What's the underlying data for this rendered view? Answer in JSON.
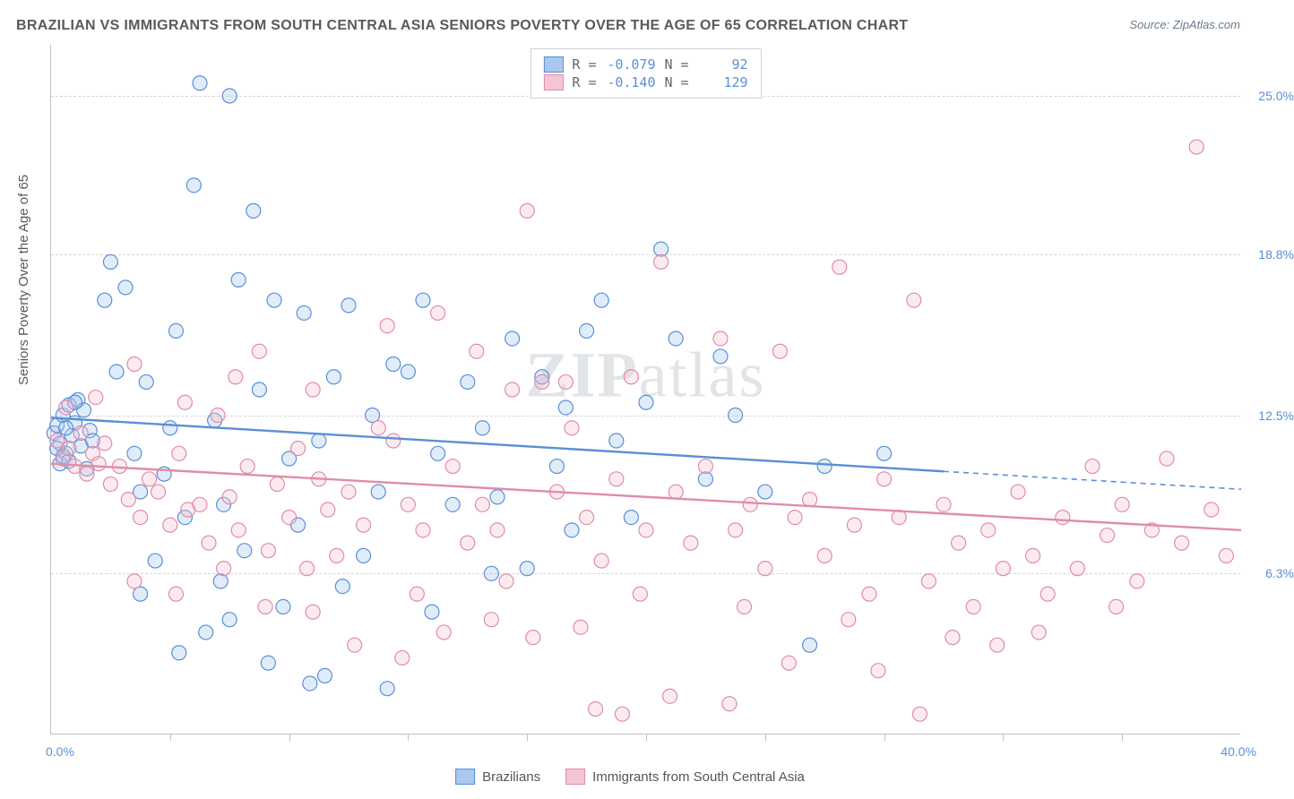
{
  "title": "BRAZILIAN VS IMMIGRANTS FROM SOUTH CENTRAL ASIA SENIORS POVERTY OVER THE AGE OF 65 CORRELATION CHART",
  "source_label": "Source: ",
  "source_name": "ZipAtlas.com",
  "ylabel": "Seniors Poverty Over the Age of 65",
  "watermark_a": "ZIP",
  "watermark_b": "atlas",
  "chart": {
    "type": "scatter",
    "background_color": "#ffffff",
    "grid_color": "#d5d5d5",
    "grid_dash": "dashed",
    "axis_color": "#c0c0c0",
    "xlim": [
      0.0,
      40.0
    ],
    "ylim": [
      0.0,
      27.0
    ],
    "x_ticks_minor_count": 9,
    "y_gridlines": [
      6.3,
      12.5,
      18.8,
      25.0
    ],
    "y_tick_labels": [
      "6.3%",
      "12.5%",
      "18.8%",
      "25.0%"
    ],
    "x_tick_labels": {
      "left": "0.0%",
      "right": "40.0%"
    },
    "tick_label_color": "#5b8fd6",
    "axis_label_color": "#5a5a5a",
    "axis_label_fontsize": 15,
    "marker_radius": 8,
    "marker_stroke_width": 1.2,
    "marker_fill_opacity": 0.35,
    "trend_line_width": 2.4
  },
  "series": [
    {
      "name": "Brazilians",
      "color_fill": "#a9c8ed",
      "color_stroke": "#5b8fd6",
      "r_value": "-0.079",
      "n_value": "92",
      "trend": {
        "x1": 0.0,
        "y1": 12.4,
        "x2": 30.0,
        "y2": 10.3,
        "extend_x2": 40.0,
        "extend_y2": 9.6,
        "dashed_after": 30.0
      },
      "points": [
        [
          0.1,
          11.8
        ],
        [
          0.2,
          12.1
        ],
        [
          0.3,
          11.4
        ],
        [
          0.4,
          12.5
        ],
        [
          0.5,
          11.0
        ],
        [
          0.6,
          12.9
        ],
        [
          0.3,
          10.6
        ],
        [
          0.7,
          11.7
        ],
        [
          0.8,
          12.2
        ],
        [
          0.4,
          10.9
        ],
        [
          0.9,
          13.1
        ],
        [
          1.0,
          11.3
        ],
        [
          1.1,
          12.7
        ],
        [
          1.2,
          10.4
        ],
        [
          1.3,
          11.9
        ],
        [
          0.5,
          12.0
        ],
        [
          0.2,
          11.2
        ],
        [
          0.6,
          10.7
        ],
        [
          0.8,
          13.0
        ],
        [
          1.4,
          11.5
        ],
        [
          1.8,
          17.0
        ],
        [
          2.0,
          18.5
        ],
        [
          2.2,
          14.2
        ],
        [
          2.5,
          17.5
        ],
        [
          2.8,
          11.0
        ],
        [
          3.0,
          9.5
        ],
        [
          3.2,
          13.8
        ],
        [
          3.5,
          6.8
        ],
        [
          3.8,
          10.2
        ],
        [
          4.0,
          12.0
        ],
        [
          4.2,
          15.8
        ],
        [
          4.5,
          8.5
        ],
        [
          4.8,
          21.5
        ],
        [
          5.0,
          25.5
        ],
        [
          5.2,
          4.0
        ],
        [
          5.5,
          12.3
        ],
        [
          5.8,
          9.0
        ],
        [
          6.0,
          25.0
        ],
        [
          6.3,
          17.8
        ],
        [
          6.5,
          7.2
        ],
        [
          6.8,
          20.5
        ],
        [
          7.0,
          13.5
        ],
        [
          7.5,
          17.0
        ],
        [
          7.8,
          5.0
        ],
        [
          8.0,
          10.8
        ],
        [
          8.3,
          8.2
        ],
        [
          8.5,
          16.5
        ],
        [
          9.0,
          11.5
        ],
        [
          9.5,
          14.0
        ],
        [
          9.8,
          5.8
        ],
        [
          10.0,
          16.8
        ],
        [
          10.5,
          7.0
        ],
        [
          10.8,
          12.5
        ],
        [
          11.0,
          9.5
        ],
        [
          11.5,
          14.5
        ],
        [
          12.0,
          14.2
        ],
        [
          12.5,
          17.0
        ],
        [
          13.0,
          11.0
        ],
        [
          13.5,
          9.0
        ],
        [
          14.0,
          13.8
        ],
        [
          14.5,
          12.0
        ],
        [
          15.0,
          9.3
        ],
        [
          15.5,
          15.5
        ],
        [
          16.0,
          6.5
        ],
        [
          16.5,
          14.0
        ],
        [
          17.0,
          10.5
        ],
        [
          17.5,
          8.0
        ],
        [
          18.0,
          15.8
        ],
        [
          18.5,
          17.0
        ],
        [
          19.0,
          11.5
        ],
        [
          20.0,
          13.0
        ],
        [
          20.5,
          19.0
        ],
        [
          21.0,
          15.5
        ],
        [
          22.0,
          10.0
        ],
        [
          23.0,
          12.5
        ],
        [
          24.0,
          9.5
        ],
        [
          8.7,
          2.0
        ],
        [
          9.2,
          2.3
        ],
        [
          11.3,
          1.8
        ],
        [
          6.0,
          4.5
        ],
        [
          25.5,
          3.5
        ],
        [
          12.8,
          4.8
        ],
        [
          7.3,
          2.8
        ],
        [
          28.0,
          11.0
        ],
        [
          14.8,
          6.3
        ],
        [
          4.3,
          3.2
        ],
        [
          3.0,
          5.5
        ],
        [
          5.7,
          6.0
        ],
        [
          26.0,
          10.5
        ],
        [
          22.5,
          14.8
        ],
        [
          19.5,
          8.5
        ],
        [
          17.3,
          12.8
        ]
      ]
    },
    {
      "name": "Immigrants from South Central Asia",
      "color_fill": "#f4c5d3",
      "color_stroke": "#e08ca8",
      "r_value": "-0.140",
      "n_value": "129",
      "trend": {
        "x1": 0.0,
        "y1": 10.6,
        "x2": 40.0,
        "y2": 8.0,
        "dashed_after": null
      },
      "points": [
        [
          0.2,
          11.5
        ],
        [
          0.4,
          10.8
        ],
        [
          0.6,
          11.2
        ],
        [
          0.8,
          10.5
        ],
        [
          1.0,
          11.8
        ],
        [
          1.2,
          10.2
        ],
        [
          1.4,
          11.0
        ],
        [
          1.6,
          10.6
        ],
        [
          1.8,
          11.4
        ],
        [
          2.0,
          9.8
        ],
        [
          2.3,
          10.5
        ],
        [
          2.6,
          9.2
        ],
        [
          3.0,
          8.5
        ],
        [
          3.3,
          10.0
        ],
        [
          3.6,
          9.5
        ],
        [
          4.0,
          8.2
        ],
        [
          4.3,
          11.0
        ],
        [
          4.6,
          8.8
        ],
        [
          5.0,
          9.0
        ],
        [
          5.3,
          7.5
        ],
        [
          5.6,
          12.5
        ],
        [
          6.0,
          9.3
        ],
        [
          6.3,
          8.0
        ],
        [
          6.6,
          10.5
        ],
        [
          7.0,
          15.0
        ],
        [
          7.3,
          7.2
        ],
        [
          7.6,
          9.8
        ],
        [
          8.0,
          8.5
        ],
        [
          8.3,
          11.2
        ],
        [
          8.6,
          6.5
        ],
        [
          9.0,
          10.0
        ],
        [
          9.3,
          8.8
        ],
        [
          9.6,
          7.0
        ],
        [
          10.0,
          9.5
        ],
        [
          10.5,
          8.2
        ],
        [
          11.0,
          12.0
        ],
        [
          11.5,
          11.5
        ],
        [
          12.0,
          9.0
        ],
        [
          12.5,
          8.0
        ],
        [
          13.0,
          16.5
        ],
        [
          13.5,
          10.5
        ],
        [
          14.0,
          7.5
        ],
        [
          14.5,
          9.0
        ],
        [
          15.0,
          8.0
        ],
        [
          15.5,
          13.5
        ],
        [
          16.0,
          20.5
        ],
        [
          16.5,
          13.8
        ],
        [
          17.0,
          9.5
        ],
        [
          17.5,
          12.0
        ],
        [
          18.0,
          8.5
        ],
        [
          18.5,
          6.8
        ],
        [
          19.0,
          10.0
        ],
        [
          19.5,
          14.0
        ],
        [
          20.0,
          8.0
        ],
        [
          20.5,
          18.5
        ],
        [
          21.0,
          9.5
        ],
        [
          21.5,
          7.5
        ],
        [
          22.0,
          10.5
        ],
        [
          22.5,
          15.5
        ],
        [
          23.0,
          8.0
        ],
        [
          23.5,
          9.0
        ],
        [
          24.0,
          6.5
        ],
        [
          24.5,
          15.0
        ],
        [
          25.0,
          8.5
        ],
        [
          25.5,
          9.2
        ],
        [
          26.0,
          7.0
        ],
        [
          26.5,
          18.3
        ],
        [
          27.0,
          8.2
        ],
        [
          27.5,
          5.5
        ],
        [
          28.0,
          10.0
        ],
        [
          28.5,
          8.5
        ],
        [
          29.0,
          17.0
        ],
        [
          29.5,
          6.0
        ],
        [
          30.0,
          9.0
        ],
        [
          30.5,
          7.5
        ],
        [
          31.0,
          5.0
        ],
        [
          31.5,
          8.0
        ],
        [
          32.0,
          6.5
        ],
        [
          32.5,
          9.5
        ],
        [
          33.0,
          7.0
        ],
        [
          33.5,
          5.5
        ],
        [
          34.0,
          8.5
        ],
        [
          34.5,
          6.5
        ],
        [
          35.0,
          10.5
        ],
        [
          35.5,
          7.8
        ],
        [
          36.0,
          9.0
        ],
        [
          36.5,
          6.0
        ],
        [
          37.0,
          8.0
        ],
        [
          37.5,
          10.8
        ],
        [
          38.0,
          7.5
        ],
        [
          38.5,
          23.0
        ],
        [
          39.0,
          8.8
        ],
        [
          39.5,
          7.0
        ],
        [
          18.3,
          1.0
        ],
        [
          19.2,
          0.8
        ],
        [
          20.8,
          1.5
        ],
        [
          22.8,
          1.2
        ],
        [
          29.2,
          0.8
        ],
        [
          27.8,
          2.5
        ],
        [
          24.8,
          2.8
        ],
        [
          10.2,
          3.5
        ],
        [
          11.8,
          3.0
        ],
        [
          13.2,
          4.0
        ],
        [
          14.8,
          4.5
        ],
        [
          16.2,
          3.8
        ],
        [
          17.8,
          4.2
        ],
        [
          31.8,
          3.5
        ],
        [
          33.2,
          4.0
        ],
        [
          2.8,
          6.0
        ],
        [
          4.2,
          5.5
        ],
        [
          5.8,
          6.5
        ],
        [
          7.2,
          5.0
        ],
        [
          8.8,
          4.8
        ],
        [
          12.3,
          5.5
        ],
        [
          15.3,
          6.0
        ],
        [
          19.8,
          5.5
        ],
        [
          23.3,
          5.0
        ],
        [
          26.8,
          4.5
        ],
        [
          30.3,
          3.8
        ],
        [
          35.8,
          5.0
        ],
        [
          0.5,
          12.8
        ],
        [
          1.5,
          13.2
        ],
        [
          2.8,
          14.5
        ],
        [
          4.5,
          13.0
        ],
        [
          6.2,
          14.0
        ],
        [
          8.8,
          13.5
        ],
        [
          11.3,
          16.0
        ],
        [
          14.3,
          15.0
        ],
        [
          17.3,
          13.8
        ]
      ]
    }
  ],
  "legend_top": {
    "r_label": "R =",
    "n_label": "N ="
  },
  "legend_bottom": [
    {
      "swatch_fill": "#a9c8ed",
      "swatch_stroke": "#5b8fd6",
      "label": "Brazilians"
    },
    {
      "swatch_fill": "#f4c5d3",
      "swatch_stroke": "#e08ca8",
      "label": "Immigrants from South Central Asia"
    }
  ]
}
